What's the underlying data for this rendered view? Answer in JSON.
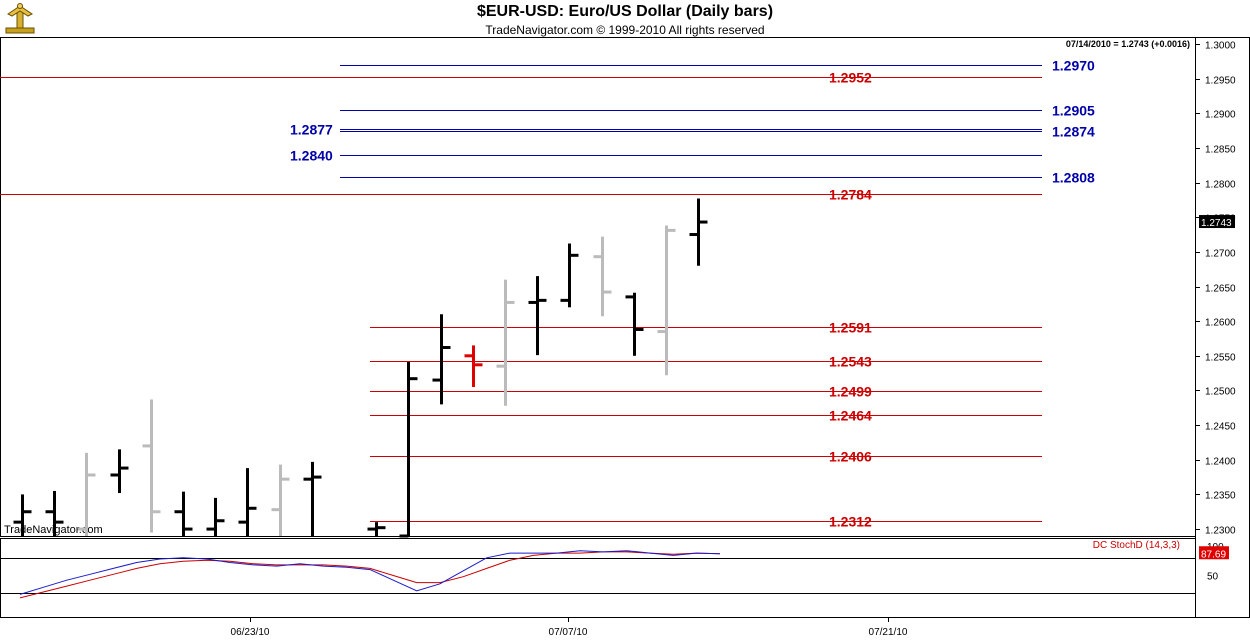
{
  "title": "$EUR-USD:  Euro/US Dollar  (Daily bars)",
  "subtitle": "TradeNavigator.com © 1999-2010 All rights reserved",
  "quote_label": "07/14/2010 = 1.2743 (+0.0016)",
  "last_price_label": "1.2743",
  "watermark": "TradeNavigator.com",
  "colors": {
    "up_bar": "#000000",
    "down_bar": "#bbbbbb",
    "highlight_bar": "#e00000",
    "red_level": "#cc0000",
    "blue_level": "#0000aa",
    "stoch_k": "#1a1acc",
    "stoch_d": "#cc0000"
  },
  "chart_data": {
    "type": "ohlc",
    "y_axis": {
      "min": 1.229,
      "max": 1.301,
      "ticks": [
        "1.2300",
        "1.2350",
        "1.2400",
        "1.2450",
        "1.2500",
        "1.2550",
        "1.2600",
        "1.2650",
        "1.2700",
        "1.2750",
        "1.2800",
        "1.2850",
        "1.2900",
        "1.2950",
        "1.3000"
      ]
    },
    "x_axis": {
      "tick_labels": [
        "06/23/10",
        "07/07/10",
        "07/21/10"
      ]
    },
    "bars": [
      {
        "o": 1.231,
        "h": 1.235,
        "l": 1.229,
        "c": 1.2325,
        "col": "up"
      },
      {
        "o": 1.2325,
        "h": 1.2355,
        "l": 1.229,
        "c": 1.231,
        "col": "up"
      },
      {
        "o": 1.23,
        "h": 1.241,
        "l": 1.229,
        "c": 1.2378,
        "col": "down"
      },
      {
        "o": 1.2378,
        "h": 1.2415,
        "l": 1.2352,
        "c": 1.2388,
        "col": "up"
      },
      {
        "o": 1.242,
        "h": 1.2487,
        "l": 1.2295,
        "c": 1.2325,
        "col": "down"
      },
      {
        "o": 1.2325,
        "h": 1.2354,
        "l": 1.229,
        "c": 1.23,
        "col": "up"
      },
      {
        "o": 1.23,
        "h": 1.2345,
        "l": 1.229,
        "c": 1.2312,
        "col": "up"
      },
      {
        "o": 1.231,
        "h": 1.2388,
        "l": 1.229,
        "c": 1.233,
        "col": "up"
      },
      {
        "o": 1.2328,
        "h": 1.2393,
        "l": 1.229,
        "c": 1.2372,
        "col": "down"
      },
      {
        "o": 1.2372,
        "h": 1.2397,
        "l": 1.229,
        "c": 1.2375,
        "col": "up"
      },
      {
        "o": null,
        "h": null,
        "l": null,
        "c": null,
        "col": "gap"
      },
      {
        "o": 1.23,
        "h": 1.231,
        "l": 1.229,
        "c": 1.2302,
        "col": "up"
      },
      {
        "o": 1.229,
        "h": 1.2541,
        "l": 1.229,
        "c": 1.2517,
        "col": "up"
      },
      {
        "o": 1.2515,
        "h": 1.261,
        "l": 1.248,
        "c": 1.2562,
        "col": "up"
      },
      {
        "o": 1.255,
        "h": 1.2565,
        "l": 1.2505,
        "c": 1.2537,
        "col": "highlight"
      },
      {
        "o": 1.2535,
        "h": 1.266,
        "l": 1.2478,
        "c": 1.2627,
        "col": "down"
      },
      {
        "o": 1.2627,
        "h": 1.2665,
        "l": 1.2551,
        "c": 1.263,
        "col": "up"
      },
      {
        "o": 1.263,
        "h": 1.2712,
        "l": 1.262,
        "c": 1.2695,
        "col": "up"
      },
      {
        "o": 1.2693,
        "h": 1.2722,
        "l": 1.2607,
        "c": 1.2642,
        "col": "down"
      },
      {
        "o": 1.2635,
        "h": 1.2641,
        "l": 1.255,
        "c": 1.2588,
        "col": "up"
      },
      {
        "o": 1.2585,
        "h": 1.2738,
        "l": 1.2522,
        "c": 1.2731,
        "col": "down"
      },
      {
        "o": 1.2725,
        "h": 1.2777,
        "l": 1.268,
        "c": 1.2743,
        "col": "up"
      }
    ],
    "red_levels": [
      {
        "value": 1.2952,
        "label": "1.2952",
        "span": "full"
      },
      {
        "value": 1.2784,
        "label": "1.2784",
        "span": "full"
      },
      {
        "value": 1.2591,
        "label": "1.2591",
        "span": "short"
      },
      {
        "value": 1.2543,
        "label": "1.2543",
        "span": "short"
      },
      {
        "value": 1.2499,
        "label": "1.2499",
        "span": "short"
      },
      {
        "value": 1.2464,
        "label": "1.2464",
        "span": "short"
      },
      {
        "value": 1.2406,
        "label": "1.2406",
        "span": "short"
      },
      {
        "value": 1.2312,
        "label": "1.2312",
        "span": "short"
      }
    ],
    "blue_levels": [
      {
        "value": 1.297,
        "label": "1.2970",
        "side": "right"
      },
      {
        "value": 1.2905,
        "label": "1.2905",
        "side": "right"
      },
      {
        "value": 1.2877,
        "label": "1.2877",
        "side": "left"
      },
      {
        "value": 1.2874,
        "label": "1.2874",
        "side": "right"
      },
      {
        "value": 1.284,
        "label": "1.2840",
        "side": "left"
      },
      {
        "value": 1.2808,
        "label": "1.2808",
        "side": "right"
      }
    ],
    "indicator": {
      "name": "DC StochD (14,3,3)",
      "value_label": "87.69",
      "y_min": 0,
      "y_max": 100,
      "ticks": [
        "50",
        "100"
      ],
      "k": [
        18,
        30,
        42,
        52,
        62,
        72,
        78,
        80,
        78,
        72,
        68,
        66,
        70,
        66,
        64,
        60,
        42,
        24,
        36,
        58,
        80,
        88,
        88,
        88,
        92,
        90,
        92,
        88,
        84,
        88,
        87
      ],
      "d": [
        12,
        22,
        32,
        42,
        52,
        62,
        70,
        74,
        76,
        74,
        70,
        68,
        68,
        68,
        66,
        62,
        50,
        38,
        38,
        48,
        62,
        76,
        84,
        88,
        88,
        90,
        90,
        88,
        86,
        88,
        87
      ]
    }
  }
}
